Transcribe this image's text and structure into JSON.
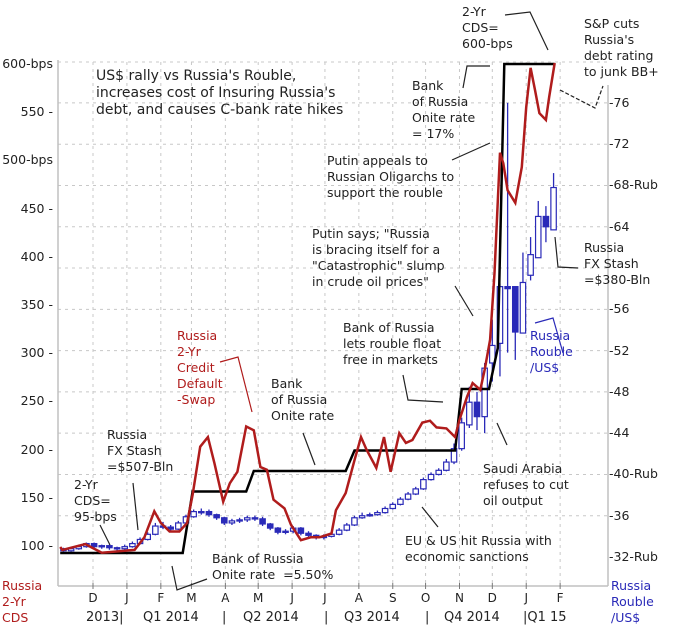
{
  "chart_data": {
    "type": "line",
    "title": "US$ rally vs Russia's Rouble,\nincreases cost of Insuring Russia's\ndebt, and causes C-bank rate hikes",
    "left_axis": {
      "label": "Russia\n2-Yr\nCDS",
      "range": [
        100,
        600
      ],
      "ticks": [
        {
          "value": 600,
          "label": "600-bps"
        },
        {
          "value": 550,
          "label": "550"
        },
        {
          "value": 500,
          "label": "500-bps"
        },
        {
          "value": 450,
          "label": "450"
        },
        {
          "value": 400,
          "label": "400"
        },
        {
          "value": 350,
          "label": "350"
        },
        {
          "value": 300,
          "label": "300"
        },
        {
          "value": 250,
          "label": "250"
        },
        {
          "value": 200,
          "label": "200"
        },
        {
          "value": 150,
          "label": "150"
        },
        {
          "value": 100,
          "label": "100"
        }
      ]
    },
    "right_axis": {
      "label": "Russia\nRouble\n/US$",
      "range": [
        32,
        76
      ],
      "ticks": [
        {
          "value": 76,
          "label": "76"
        },
        {
          "value": 72,
          "label": "72"
        },
        {
          "value": 68,
          "label": "-68-Rub"
        },
        {
          "value": 64,
          "label": "64"
        },
        {
          "value": 56,
          "label": "56"
        },
        {
          "value": 52,
          "label": "52"
        },
        {
          "value": 48,
          "label": "48"
        },
        {
          "value": 44,
          "label": "44"
        },
        {
          "value": 40,
          "label": "-40-Rub"
        },
        {
          "value": 36,
          "label": "36"
        },
        {
          "value": 32,
          "label": "-32-Rub"
        }
      ]
    },
    "x_axis": {
      "months": [
        {
          "date": "2013-12-01",
          "label": "D"
        },
        {
          "date": "2014-01-01",
          "label": "J"
        },
        {
          "date": "2014-02-01",
          "label": "F"
        },
        {
          "date": "2014-03-01",
          "label": "M"
        },
        {
          "date": "2014-04-01",
          "label": "A"
        },
        {
          "date": "2014-05-01",
          "label": "M"
        },
        {
          "date": "2014-06-01",
          "label": "J"
        },
        {
          "date": "2014-07-01",
          "label": "J"
        },
        {
          "date": "2014-08-01",
          "label": "A"
        },
        {
          "date": "2014-09-01",
          "label": "S"
        },
        {
          "date": "2014-10-01",
          "label": "O"
        },
        {
          "date": "2014-11-01",
          "label": "N"
        },
        {
          "date": "2014-12-01",
          "label": "D"
        },
        {
          "date": "2015-01-01",
          "label": "J"
        },
        {
          "date": "2015-02-01",
          "label": "F"
        }
      ],
      "periods": [
        "2013|",
        "Q1 2014",
        "|",
        "Q2 2014",
        "|",
        "Q3 2014",
        "|",
        "Q4 2014",
        "|Q1 15"
      ]
    },
    "grid": true,
    "series": [
      {
        "name": "Russia 2-Yr Credit Default -Swap",
        "type": "line",
        "axis": "left",
        "color": "#b01c1c",
        "points": [
          [
            "2013-11-01",
            99
          ],
          [
            "2013-11-03",
            96
          ],
          [
            "2013-11-24",
            102
          ],
          [
            "2013-12-09",
            93
          ],
          [
            "2014-01-08",
            96
          ],
          [
            "2014-01-17",
            109
          ],
          [
            "2014-01-26",
            136
          ],
          [
            "2014-02-01",
            124
          ],
          [
            "2014-02-09",
            115
          ],
          [
            "2014-02-18",
            115
          ],
          [
            "2014-02-25",
            124
          ],
          [
            "2014-03-02",
            153
          ],
          [
            "2014-03-09",
            203
          ],
          [
            "2014-03-16",
            213
          ],
          [
            "2014-03-22",
            186
          ],
          [
            "2014-03-30",
            146
          ],
          [
            "2014-04-05",
            165
          ],
          [
            "2014-04-12",
            177
          ],
          [
            "2014-04-20",
            224
          ],
          [
            "2014-04-27",
            220
          ],
          [
            "2014-05-03",
            182
          ],
          [
            "2014-05-09",
            179
          ],
          [
            "2014-05-15",
            148
          ],
          [
            "2014-05-25",
            139
          ],
          [
            "2014-05-31",
            122
          ],
          [
            "2014-06-09",
            106
          ],
          [
            "2014-06-18",
            109
          ],
          [
            "2014-06-26",
            109
          ],
          [
            "2014-07-07",
            113
          ],
          [
            "2014-07-11",
            137
          ],
          [
            "2014-07-20",
            155
          ],
          [
            "2014-07-28",
            189
          ],
          [
            "2014-08-03",
            213
          ],
          [
            "2014-08-08",
            200
          ],
          [
            "2014-08-17",
            181
          ],
          [
            "2014-08-24",
            213
          ],
          [
            "2014-08-30",
            177
          ],
          [
            "2014-09-07",
            217
          ],
          [
            "2014-09-13",
            207
          ],
          [
            "2014-09-19",
            210
          ],
          [
            "2014-09-28",
            228
          ],
          [
            "2014-10-05",
            230
          ],
          [
            "2014-10-11",
            223
          ],
          [
            "2014-10-20",
            222
          ],
          [
            "2014-10-28",
            213
          ],
          [
            "2014-11-01",
            231
          ],
          [
            "2014-11-08",
            255
          ],
          [
            "2014-11-13",
            269
          ],
          [
            "2014-11-20",
            262
          ],
          [
            "2014-11-24",
            283
          ],
          [
            "2014-11-29",
            314
          ],
          [
            "2014-12-03",
            383
          ],
          [
            "2014-12-08",
            508
          ],
          [
            "2014-12-11",
            497
          ],
          [
            "2014-12-15",
            469
          ],
          [
            "2014-12-22",
            456
          ],
          [
            "2014-12-28",
            493
          ],
          [
            "2015-01-01",
            555
          ],
          [
            "2015-01-05",
            596
          ],
          [
            "2015-01-09",
            573
          ],
          [
            "2015-01-13",
            549
          ],
          [
            "2015-01-19",
            542
          ],
          [
            "2015-01-22",
            566
          ],
          [
            "2015-01-27",
            601
          ]
        ]
      },
      {
        "name": "Bank of Russia Onite rate",
        "type": "step",
        "unit": "%",
        "color": "#000000",
        "points": [
          [
            "2013-11-01",
            5.5
          ],
          [
            "2014-02-21",
            5.5
          ],
          [
            "2014-03-02",
            7.0
          ],
          [
            "2014-04-20",
            7.0
          ],
          [
            "2014-04-27",
            7.5
          ],
          [
            "2014-07-20",
            7.5
          ],
          [
            "2014-07-28",
            8.0
          ],
          [
            "2014-10-28",
            8.0
          ],
          [
            "2014-11-03",
            9.5
          ],
          [
            "2014-11-28",
            9.5
          ],
          [
            "2014-12-06",
            10.5
          ],
          [
            "2014-12-12",
            17
          ],
          [
            "2015-01-27",
            17
          ]
        ]
      },
      {
        "name": "Russia Rouble /US$",
        "type": "candlestick",
        "axis": "right",
        "color": "#2a2ab8",
        "fields": [
          "date",
          "open",
          "high",
          "low",
          "close"
        ],
        "points": [
          [
            "2013-11-04",
            32.8,
            32.9,
            32.5,
            32.6
          ],
          [
            "2013-11-11",
            32.6,
            33.0,
            32.5,
            32.8
          ],
          [
            "2013-11-18",
            32.8,
            33.2,
            32.7,
            33.0
          ],
          [
            "2013-11-25",
            33.0,
            33.4,
            32.9,
            33.3
          ],
          [
            "2013-12-02",
            33.3,
            33.4,
            32.9,
            33.0
          ],
          [
            "2013-12-09",
            33.0,
            33.2,
            32.8,
            33.1
          ],
          [
            "2013-12-16",
            33.1,
            33.2,
            32.7,
            32.9
          ],
          [
            "2013-12-23",
            32.9,
            33.0,
            32.6,
            32.8
          ],
          [
            "2013-12-30",
            32.8,
            33.2,
            32.7,
            33.0
          ],
          [
            "2014-01-06",
            33.0,
            33.5,
            32.9,
            33.3
          ],
          [
            "2014-01-13",
            33.3,
            33.9,
            33.2,
            33.7
          ],
          [
            "2014-01-20",
            33.7,
            34.4,
            33.6,
            34.2
          ],
          [
            "2014-01-27",
            34.2,
            35.3,
            34.1,
            35.0
          ],
          [
            "2014-02-03",
            35.0,
            35.4,
            34.7,
            34.9
          ],
          [
            "2014-02-10",
            34.9,
            35.1,
            34.5,
            34.7
          ],
          [
            "2014-02-17",
            34.7,
            35.5,
            34.6,
            35.3
          ],
          [
            "2014-02-24",
            35.3,
            36.1,
            35.2,
            35.9
          ],
          [
            "2014-03-03",
            35.9,
            36.6,
            35.8,
            36.4
          ],
          [
            "2014-03-10",
            36.4,
            36.7,
            36.1,
            36.4
          ],
          [
            "2014-03-17",
            36.4,
            36.6,
            35.9,
            36.1
          ],
          [
            "2014-03-24",
            36.1,
            36.2,
            35.6,
            35.8
          ],
          [
            "2014-03-31",
            35.8,
            35.9,
            35.1,
            35.3
          ],
          [
            "2014-04-07",
            35.3,
            35.7,
            35.1,
            35.5
          ],
          [
            "2014-04-14",
            35.5,
            35.8,
            35.3,
            35.6
          ],
          [
            "2014-04-21",
            35.6,
            36.0,
            35.4,
            35.8
          ],
          [
            "2014-04-28",
            35.8,
            36.0,
            35.5,
            35.7
          ],
          [
            "2014-05-05",
            35.7,
            35.9,
            35.0,
            35.2
          ],
          [
            "2014-05-12",
            35.2,
            35.3,
            34.6,
            34.8
          ],
          [
            "2014-05-19",
            34.8,
            34.9,
            34.2,
            34.4
          ],
          [
            "2014-05-26",
            34.4,
            34.7,
            34.2,
            34.5
          ],
          [
            "2014-06-02",
            34.5,
            35.0,
            34.3,
            34.8
          ],
          [
            "2014-06-09",
            34.8,
            34.9,
            34.1,
            34.3
          ],
          [
            "2014-06-16",
            34.3,
            34.5,
            33.9,
            34.1
          ],
          [
            "2014-06-23",
            34.1,
            34.2,
            33.7,
            33.9
          ],
          [
            "2014-06-30",
            33.9,
            34.2,
            33.7,
            34.0
          ],
          [
            "2014-07-07",
            34.0,
            34.4,
            33.9,
            34.2
          ],
          [
            "2014-07-14",
            34.2,
            34.8,
            34.1,
            34.6
          ],
          [
            "2014-07-21",
            34.6,
            35.3,
            34.5,
            35.1
          ],
          [
            "2014-07-28",
            35.1,
            36.0,
            35.0,
            35.8
          ],
          [
            "2014-08-04",
            35.8,
            36.3,
            35.7,
            36.0
          ],
          [
            "2014-08-11",
            36.0,
            36.3,
            35.9,
            36.1
          ],
          [
            "2014-08-18",
            36.1,
            36.5,
            36.0,
            36.3
          ],
          [
            "2014-08-25",
            36.3,
            36.9,
            36.2,
            36.7
          ],
          [
            "2014-09-01",
            36.7,
            37.3,
            36.6,
            37.1
          ],
          [
            "2014-09-08",
            37.1,
            37.8,
            37.0,
            37.6
          ],
          [
            "2014-09-15",
            37.6,
            38.3,
            37.5,
            38.1
          ],
          [
            "2014-09-22",
            38.1,
            38.8,
            38.0,
            38.6
          ],
          [
            "2014-09-29",
            38.6,
            39.7,
            38.5,
            39.5
          ],
          [
            "2014-10-06",
            39.5,
            40.2,
            39.4,
            40.0
          ],
          [
            "2014-10-13",
            40.0,
            40.6,
            39.9,
            40.4
          ],
          [
            "2014-10-20",
            40.4,
            41.5,
            40.3,
            41.2
          ],
          [
            "2014-10-27",
            41.2,
            43.0,
            41.0,
            42.5
          ],
          [
            "2014-11-03",
            42.5,
            45.5,
            42.3,
            45.0
          ],
          [
            "2014-11-10",
            44.8,
            48.5,
            44.5,
            47.0
          ],
          [
            "2014-11-17",
            47.0,
            48.0,
            44.3,
            45.6
          ],
          [
            "2014-11-24",
            45.6,
            50.8,
            44.0,
            50.3
          ],
          [
            "2014-12-01",
            50.8,
            55.0,
            49.0,
            52.5
          ],
          [
            "2014-12-08",
            52.7,
            58.5,
            49.5,
            58.2
          ],
          [
            "2014-12-15",
            58.2,
            76.0,
            51.8,
            58.0
          ],
          [
            "2014-12-22",
            58.2,
            58.2,
            51.1,
            53.8
          ],
          [
            "2014-12-29",
            53.7,
            61.5,
            53.7,
            58.6
          ],
          [
            "2015-01-05",
            59.3,
            63.0,
            58.8,
            61.3
          ],
          [
            "2015-01-12",
            61.0,
            66.5,
            61.0,
            65.0
          ],
          [
            "2015-01-19",
            65.0,
            66.0,
            62.5,
            64.0
          ],
          [
            "2015-01-26",
            63.7,
            69.2,
            63.7,
            67.8
          ]
        ]
      }
    ],
    "annotations": {
      "cds_600": "2-Yr\nCDS=\n600-bps",
      "sp_cut": "S&P cuts\nRussia's\ndebt rating\nto junk BB+",
      "rate_17": "Bank\nof Russia\nOnite rate\n= 17%",
      "putin_appeals": "Putin appeals to\nRussian Oligarchs to\nsupport the rouble",
      "putin_says": "Putin says; \"Russia\nis bracing itself for a\n\"Catastrophic\" slump\nin crude oil prices\"",
      "fx_380": "Russia\nFX Stash\n=$380-Bln",
      "rouble_float": "Bank of Russia\nlets rouble float\nfree in markets",
      "rouble_series": "Russia\nRouble\n/US$",
      "cds_series": "Russia\n2-Yr\nCredit\nDefault\n-Swap",
      "onite_rate": "Bank\nof Russia\nOnite rate",
      "fx_507": "Russia\nFX Stash\n=$507-Bln",
      "cds_95": "2-Yr\nCDS=\n95-bps",
      "saudi": "Saudi Arabia\nrefuses to cut\noil output",
      "sanctions": "EU & US hit Russia with\neconomic sanctions",
      "rate_550": "Bank of Russia\nOnite rate  =5.50%"
    },
    "colors": {
      "cds": "#b01c1c",
      "rouble": "#2a2ab8",
      "rate": "#000000",
      "grid": "#c8c8c8"
    }
  }
}
